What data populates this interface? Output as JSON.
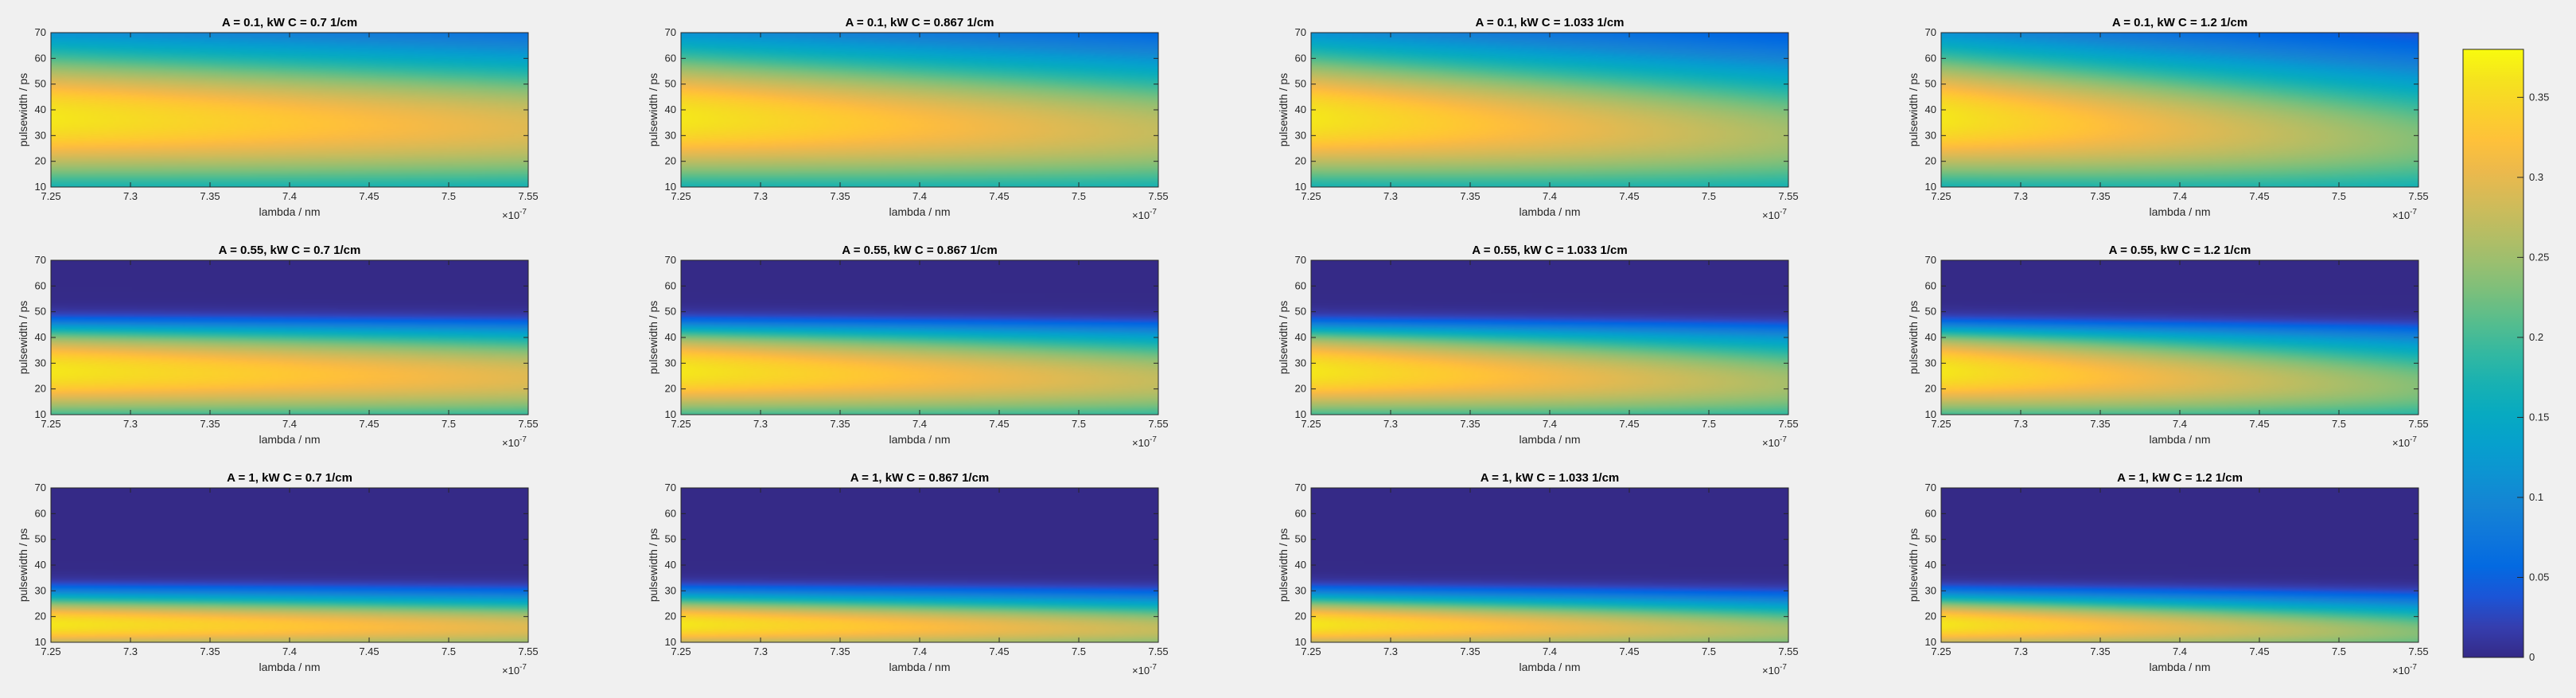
{
  "chart_data": {
    "type": "heatmap",
    "layout": "3 rows x 4 columns of heatmap panels with a shared colorbar on the right",
    "xlabel": "lambda / nm",
    "ylabel": "pulsewidth / ps",
    "x_exponent_label": "×10",
    "x_exponent_power": "-7",
    "xlim": [
      7.25,
      7.55
    ],
    "ylim": [
      10,
      70
    ],
    "xticks": [
      "7.25",
      "7.3",
      "7.35",
      "7.4",
      "7.45",
      "7.5",
      "7.55"
    ],
    "yticks": [
      "10",
      "20",
      "30",
      "40",
      "50",
      "60",
      "70"
    ],
    "colormap": "parula",
    "clim": [
      0,
      0.38
    ],
    "colorbar_ticks": [
      "0",
      "0.05",
      "0.1",
      "0.15",
      "0.2",
      "0.25",
      "0.3",
      "0.35"
    ],
    "grid": false,
    "panels": [
      {
        "title": "A = 0.1, kW C = 0.7 1/cm",
        "A": 0.1,
        "C": 0.7
      },
      {
        "title": "A = 0.1, kW C = 0.867 1/cm",
        "A": 0.1,
        "C": 0.867
      },
      {
        "title": "A = 0.1, kW C = 1.033 1/cm",
        "A": 0.1,
        "C": 1.033
      },
      {
        "title": "A = 0.1, kW C = 1.2 1/cm",
        "A": 0.1,
        "C": 1.2
      },
      {
        "title": "A = 0.55, kW C = 0.7 1/cm",
        "A": 0.55,
        "C": 0.7
      },
      {
        "title": "A = 0.55, kW C = 0.867 1/cm",
        "A": 0.55,
        "C": 0.867
      },
      {
        "title": "A = 0.55, kW C = 1.033 1/cm",
        "A": 0.55,
        "C": 1.033
      },
      {
        "title": "A = 0.55, kW C = 1.2 1/cm",
        "A": 0.55,
        "C": 1.2
      },
      {
        "title": "A = 1, kW C = 0.7 1/cm",
        "A": 1,
        "C": 0.7
      },
      {
        "title": "A = 1, kW C = 0.867 1/cm",
        "A": 1,
        "C": 0.867
      },
      {
        "title": "A = 1, kW C = 1.033 1/cm",
        "A": 1,
        "C": 1.033
      },
      {
        "title": "A = 1, kW C = 1.2 1/cm",
        "A": 1,
        "C": 1.2
      }
    ]
  }
}
